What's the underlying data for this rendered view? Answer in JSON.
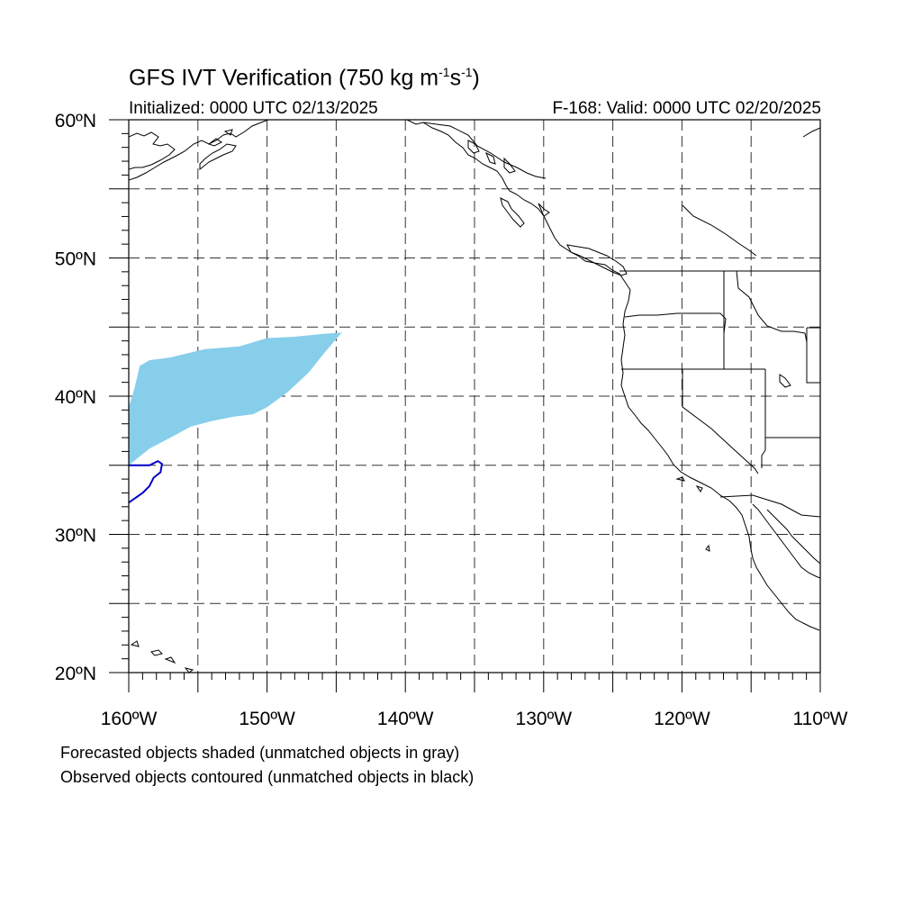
{
  "header": {
    "title_main": "GFS IVT Verification (750 kg m",
    "title_exp1": "-1",
    "title_mid": "s",
    "title_exp2": "-1",
    "title_end": ")",
    "initialized": "Initialized: 0000 UTC 02/13/2025",
    "valid": "F-168: Valid: 0000 UTC 02/20/2025"
  },
  "map": {
    "lon_range": [
      -160,
      -110
    ],
    "lat_range": [
      20,
      60
    ],
    "lat_ticks": [
      {
        "value": 60,
        "label": "60ºN"
      },
      {
        "value": 50,
        "label": "50ºN"
      },
      {
        "value": 40,
        "label": "40ºN"
      },
      {
        "value": 30,
        "label": "30ºN"
      },
      {
        "value": 20,
        "label": "20ºN"
      }
    ],
    "lon_ticks": [
      {
        "value": -160,
        "label": "160ºW"
      },
      {
        "value": -150,
        "label": "150ºW"
      },
      {
        "value": -140,
        "label": "140ºW"
      },
      {
        "value": -130,
        "label": "130ºW"
      },
      {
        "value": -120,
        "label": "120ºW"
      },
      {
        "value": -110,
        "label": "110ºW"
      }
    ],
    "grid_spacing_deg": 5,
    "forecast_color": "#87ceeb",
    "observed_color": "#0000cc",
    "forecast_object": [
      [
        -160,
        35
      ],
      [
        -159.5,
        35.4
      ],
      [
        -158.5,
        36.2
      ],
      [
        -157,
        37
      ],
      [
        -155.5,
        37.8
      ],
      [
        -154,
        38.2
      ],
      [
        -152.5,
        38.5
      ],
      [
        -151,
        38.7
      ],
      [
        -150,
        39.2
      ],
      [
        -148.5,
        40.3
      ],
      [
        -147,
        41.7
      ],
      [
        -145.8,
        43.2
      ],
      [
        -144.6,
        44.6
      ],
      [
        -146,
        44.5
      ],
      [
        -148,
        44.3
      ],
      [
        -150,
        44.2
      ],
      [
        -152,
        43.6
      ],
      [
        -154.5,
        43.4
      ],
      [
        -157,
        42.8
      ],
      [
        -158.5,
        42.6
      ],
      [
        -159.2,
        42.2
      ],
      [
        -159.6,
        40.5
      ],
      [
        -160,
        39.2
      ]
    ],
    "observed_object": [
      [
        -160,
        35
      ],
      [
        -158.5,
        35
      ],
      [
        -157.9,
        35.3
      ],
      [
        -157.6,
        35.1
      ],
      [
        -157.7,
        34.5
      ],
      [
        -158.2,
        34.1
      ],
      [
        -158.5,
        33.5
      ],
      [
        -159,
        33
      ],
      [
        -160,
        32.3
      ]
    ]
  },
  "notes": {
    "forecast": "Forecasted objects shaded (unmatched objects in gray)",
    "observed": "Observed objects contoured (unmatched objects in black)"
  }
}
